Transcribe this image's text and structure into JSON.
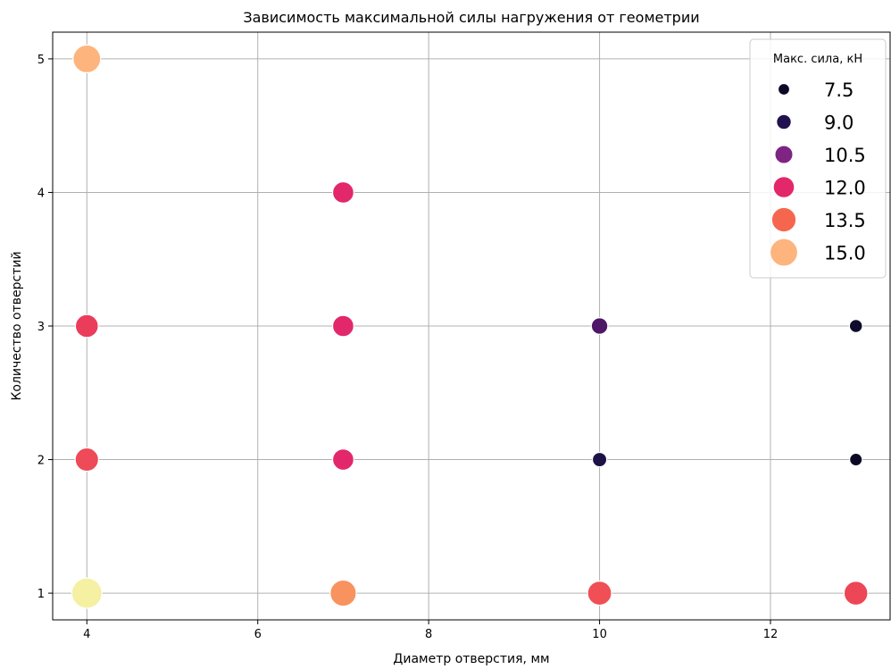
{
  "chart_data": {
    "type": "scatter",
    "title": "Зависимость максимальной силы нагружения от геометрии",
    "xlabel": "Диаметр отверстия, мм",
    "ylabel": "Количество отверстий",
    "xlim": [
      3.6,
      13.4
    ],
    "ylim": [
      0.8,
      5.2
    ],
    "xticks": [
      4,
      6,
      8,
      10,
      12
    ],
    "yticks": [
      1,
      2,
      3,
      4,
      5
    ],
    "grid": true,
    "legend": {
      "title": "Макс. сила, кН",
      "placement": "top-right",
      "entries": [
        {
          "label": "7.5",
          "value": 7.5,
          "color": "#0c0926"
        },
        {
          "label": "9.0",
          "value": 9.0,
          "color": "#221150"
        },
        {
          "label": "10.5",
          "value": 10.5,
          "color": "#7e2482"
        },
        {
          "label": "12.0",
          "value": 12.0,
          "color": "#e2286a"
        },
        {
          "label": "13.5",
          "value": 13.5,
          "color": "#f6664f"
        },
        {
          "label": "15.0",
          "value": 15.0,
          "color": "#fdb47d"
        }
      ]
    },
    "points": [
      {
        "x": 4,
        "y": 5,
        "force": 15.0,
        "color": "#fdb47d"
      },
      {
        "x": 4,
        "y": 3,
        "force": 12.8,
        "color": "#ea3d5b"
      },
      {
        "x": 4,
        "y": 2,
        "force": 13.0,
        "color": "#ee4a57"
      },
      {
        "x": 4,
        "y": 1,
        "force": 16.2,
        "color": "#f5f0a2"
      },
      {
        "x": 7,
        "y": 4,
        "force": 12.0,
        "color": "#e2286a"
      },
      {
        "x": 7,
        "y": 3,
        "force": 12.0,
        "color": "#e2286a"
      },
      {
        "x": 7,
        "y": 2,
        "force": 12.0,
        "color": "#e2286a"
      },
      {
        "x": 7,
        "y": 1,
        "force": 14.3,
        "color": "#f8925f"
      },
      {
        "x": 10,
        "y": 3,
        "force": 9.8,
        "color": "#4e1767"
      },
      {
        "x": 10,
        "y": 2,
        "force": 8.8,
        "color": "#1d1246"
      },
      {
        "x": 10,
        "y": 1,
        "force": 13.3,
        "color": "#ef4f55"
      },
      {
        "x": 13,
        "y": 3,
        "force": 8.2,
        "color": "#0e0b2c"
      },
      {
        "x": 13,
        "y": 2,
        "force": 8.0,
        "color": "#0b0924"
      },
      {
        "x": 13,
        "y": 1,
        "force": 13.2,
        "color": "#ed4656"
      }
    ]
  }
}
